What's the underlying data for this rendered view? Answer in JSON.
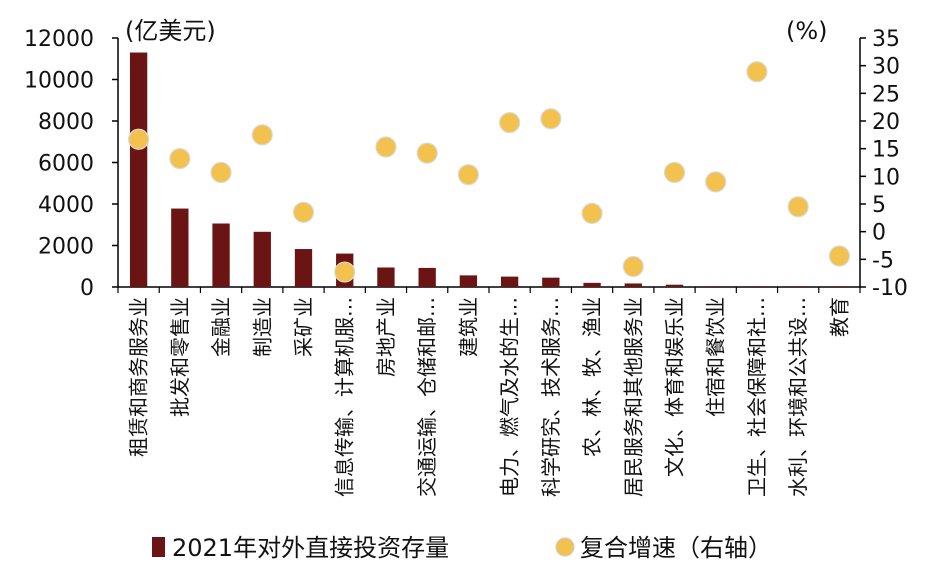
{
  "chart_data": {
    "type": "bar",
    "left_unit": "(亿美元)",
    "right_unit": "(%)",
    "categories": [
      "租赁和商务服务业",
      "批发和零售业",
      "金融业",
      "制造业",
      "采矿业",
      "信息传输、计算机服…",
      "房地产业",
      "交通运输、仓储和邮…",
      "建筑业",
      "电力、燃气及水的生…",
      "科学研究、技术服务…",
      "农、林、牧、渔业",
      "居民服务和其他服务业",
      "文化、体育和娱乐业",
      "住宿和餐饮业",
      "卫生、社会保障和社…",
      "水利、环境和公共设…",
      "教育"
    ],
    "series": [
      {
        "name": "2021年对外直接投资存量",
        "type": "bar",
        "axis": "left",
        "color": "#6b1414",
        "values": [
          11300,
          3780,
          3060,
          2660,
          1830,
          1610,
          940,
          920,
          560,
          500,
          450,
          200,
          170,
          110,
          30,
          20,
          10,
          5
        ]
      },
      {
        "name": "复合增速（右轴）",
        "type": "scatter",
        "axis": "right",
        "color": "#f2c14e",
        "values": [
          16.7,
          13.2,
          10.7,
          17.5,
          3.5,
          -7.3,
          15.3,
          14.2,
          10.3,
          19.7,
          20.4,
          3.3,
          -6.3,
          10.7,
          9.0,
          28.9,
          4.5,
          -4.4
        ]
      }
    ],
    "y_left": {
      "min": 0,
      "max": 12000,
      "ticks": [
        0,
        2000,
        4000,
        6000,
        8000,
        10000,
        12000
      ]
    },
    "y_right": {
      "min": -10,
      "max": 35,
      "ticks": [
        -10,
        -5,
        0,
        5,
        10,
        15,
        20,
        25,
        30,
        35
      ]
    },
    "legend_position": "bottom",
    "grid": false
  }
}
